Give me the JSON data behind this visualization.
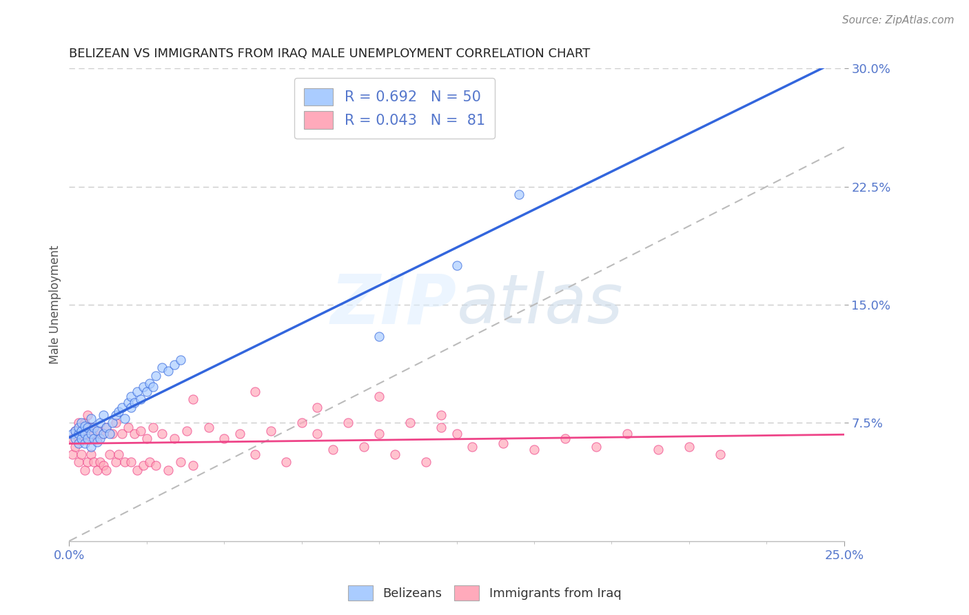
{
  "title": "BELIZEAN VS IMMIGRANTS FROM IRAQ MALE UNEMPLOYMENT CORRELATION CHART",
  "source_text": "Source: ZipAtlas.com",
  "ylabel": "Male Unemployment",
  "xlim": [
    0.0,
    0.25
  ],
  "ylim": [
    0.0,
    0.3
  ],
  "xticks": [
    0.0,
    0.25
  ],
  "xticklabels": [
    "0.0%",
    "25.0%"
  ],
  "yticks": [
    0.075,
    0.15,
    0.225,
    0.3
  ],
  "yticklabels": [
    "7.5%",
    "15.0%",
    "22.5%",
    "30.0%"
  ],
  "blue_R": 0.692,
  "blue_N": 50,
  "pink_R": 0.043,
  "pink_N": 81,
  "blue_color": "#aaccff",
  "blue_line_color": "#3366dd",
  "pink_color": "#ffaabb",
  "pink_line_color": "#ee4488",
  "ref_line_color": "#bbbbbb",
  "grid_color": "#cccccc",
  "legend_blue_label": "Belizeans",
  "legend_pink_label": "Immigrants from Iraq",
  "tick_color": "#5577cc",
  "blue_scatter_x": [
    0.001,
    0.002,
    0.002,
    0.003,
    0.003,
    0.003,
    0.004,
    0.004,
    0.004,
    0.005,
    0.005,
    0.005,
    0.006,
    0.006,
    0.007,
    0.007,
    0.007,
    0.008,
    0.008,
    0.009,
    0.009,
    0.01,
    0.01,
    0.011,
    0.011,
    0.012,
    0.013,
    0.014,
    0.015,
    0.016,
    0.017,
    0.018,
    0.019,
    0.02,
    0.02,
    0.021,
    0.022,
    0.023,
    0.024,
    0.025,
    0.026,
    0.027,
    0.028,
    0.03,
    0.032,
    0.034,
    0.036,
    0.1,
    0.125,
    0.145
  ],
  "blue_scatter_y": [
    0.068,
    0.065,
    0.07,
    0.062,
    0.068,
    0.072,
    0.065,
    0.07,
    0.075,
    0.062,
    0.068,
    0.073,
    0.065,
    0.072,
    0.06,
    0.068,
    0.078,
    0.065,
    0.072,
    0.063,
    0.07,
    0.065,
    0.075,
    0.068,
    0.08,
    0.072,
    0.068,
    0.075,
    0.08,
    0.082,
    0.085,
    0.078,
    0.088,
    0.085,
    0.092,
    0.088,
    0.095,
    0.09,
    0.098,
    0.095,
    0.1,
    0.098,
    0.105,
    0.11,
    0.108,
    0.112,
    0.115,
    0.13,
    0.175,
    0.22
  ],
  "pink_scatter_x": [
    0.001,
    0.001,
    0.002,
    0.002,
    0.003,
    0.003,
    0.003,
    0.004,
    0.004,
    0.005,
    0.005,
    0.005,
    0.006,
    0.006,
    0.006,
    0.007,
    0.007,
    0.008,
    0.008,
    0.009,
    0.009,
    0.01,
    0.01,
    0.011,
    0.011,
    0.012,
    0.012,
    0.013,
    0.014,
    0.015,
    0.015,
    0.016,
    0.017,
    0.018,
    0.019,
    0.02,
    0.021,
    0.022,
    0.023,
    0.024,
    0.025,
    0.026,
    0.027,
    0.028,
    0.03,
    0.032,
    0.034,
    0.036,
    0.038,
    0.04,
    0.045,
    0.05,
    0.055,
    0.06,
    0.065,
    0.07,
    0.075,
    0.08,
    0.085,
    0.09,
    0.095,
    0.1,
    0.105,
    0.11,
    0.115,
    0.12,
    0.125,
    0.13,
    0.14,
    0.15,
    0.16,
    0.17,
    0.18,
    0.19,
    0.2,
    0.21,
    0.04,
    0.06,
    0.08,
    0.1,
    0.12
  ],
  "pink_scatter_y": [
    0.055,
    0.065,
    0.06,
    0.07,
    0.05,
    0.065,
    0.075,
    0.055,
    0.07,
    0.045,
    0.065,
    0.075,
    0.05,
    0.068,
    0.08,
    0.055,
    0.072,
    0.05,
    0.068,
    0.045,
    0.065,
    0.05,
    0.07,
    0.048,
    0.068,
    0.045,
    0.072,
    0.055,
    0.068,
    0.05,
    0.075,
    0.055,
    0.068,
    0.05,
    0.072,
    0.05,
    0.068,
    0.045,
    0.07,
    0.048,
    0.065,
    0.05,
    0.072,
    0.048,
    0.068,
    0.045,
    0.065,
    0.05,
    0.07,
    0.048,
    0.072,
    0.065,
    0.068,
    0.055,
    0.07,
    0.05,
    0.075,
    0.068,
    0.058,
    0.075,
    0.06,
    0.068,
    0.055,
    0.075,
    0.05,
    0.072,
    0.068,
    0.06,
    0.062,
    0.058,
    0.065,
    0.06,
    0.068,
    0.058,
    0.06,
    0.055,
    0.09,
    0.095,
    0.085,
    0.092,
    0.08
  ]
}
